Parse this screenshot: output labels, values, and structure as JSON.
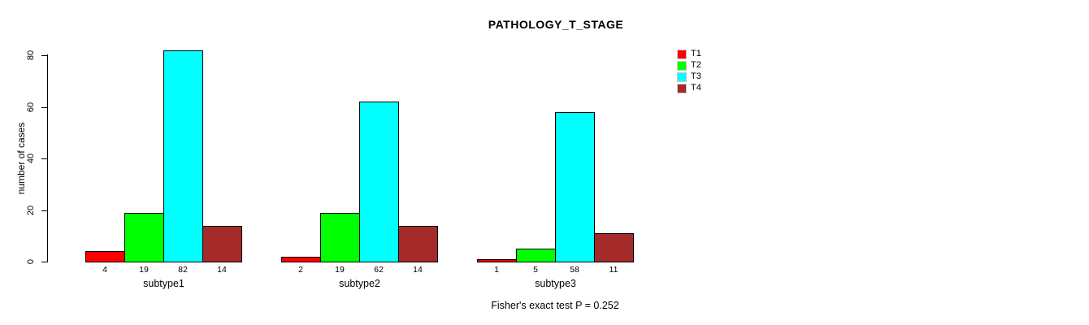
{
  "chart_data": {
    "type": "bar",
    "title": "PATHOLOGY_T_STAGE",
    "ylabel": "number of cases",
    "xlabel": "",
    "categories": [
      "subtype1",
      "subtype2",
      "subtype3"
    ],
    "series": [
      {
        "name": "T1",
        "color": "#FF0000",
        "values": [
          4,
          2,
          1
        ]
      },
      {
        "name": "T2",
        "color": "#00FF00",
        "values": [
          19,
          19,
          5
        ]
      },
      {
        "name": "T3",
        "color": "#00FFFF",
        "values": [
          82,
          62,
          58
        ]
      },
      {
        "name": "T4",
        "color": "#A52A2A",
        "values": [
          14,
          14,
          11
        ]
      }
    ],
    "yticks": [
      0,
      20,
      40,
      60,
      80
    ],
    "ylim": [
      0,
      80
    ],
    "grid": false,
    "legend_position": "top-right",
    "bar_value_labels_shown": true,
    "annotation": "Fisher's exact test P = 0.252"
  }
}
